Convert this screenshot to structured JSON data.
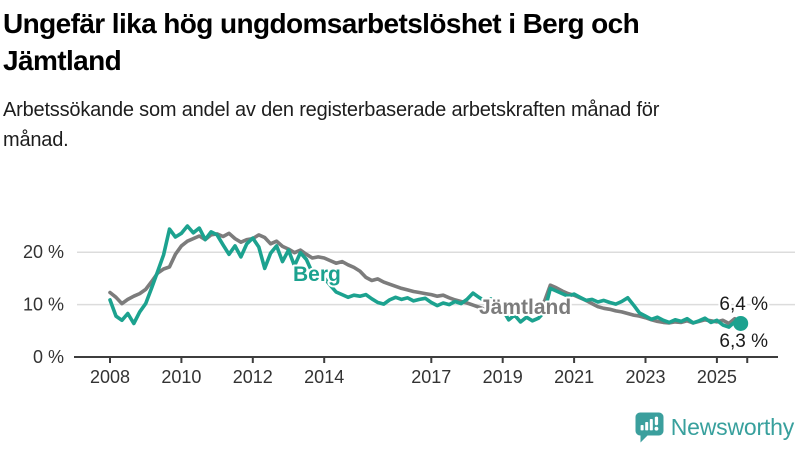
{
  "header": {
    "title": "Ungefär lika hög ungdomsarbetslöshet i Berg och Jämtland",
    "subtitle": "Arbetssökande som andel av den registerbaserade arbetskraften månad för månad."
  },
  "branding": {
    "name": "Newsworthy",
    "color": "#38a09d",
    "icon": "newsworthy-bubble-chart-icon"
  },
  "chart_data": {
    "type": "line",
    "unit": "%",
    "x_label": "",
    "y_label": "",
    "x_min": 2008.0,
    "x_max": 2025.85,
    "x_step_months": 2,
    "ylim": [
      0,
      27
    ],
    "grid": true,
    "y_ticks": [
      {
        "v": 0,
        "label": "0 %"
      },
      {
        "v": 10,
        "label": "10 %"
      },
      {
        "v": 20,
        "label": "20 %"
      }
    ],
    "x_ticks": [
      {
        "t": 2008,
        "label": "2008"
      },
      {
        "t": 2010,
        "label": "2010"
      },
      {
        "t": 2012,
        "label": "2012"
      },
      {
        "t": 2014,
        "label": "2014"
      },
      {
        "t": 2017,
        "label": "2017"
      },
      {
        "t": 2019,
        "label": "2019"
      },
      {
        "t": 2021,
        "label": "2021"
      },
      {
        "t": 2023,
        "label": "2023"
      },
      {
        "t": 2025,
        "label": "2025"
      },
      {
        "t": 2025.85,
        "label": ""
      }
    ],
    "series": [
      {
        "name": "Jämtland",
        "color": "#7c7c7c",
        "end_label": "6,3 %",
        "end_value": 6.3,
        "values": [
          12.3,
          11.4,
          10.2,
          11.0,
          11.6,
          12.1,
          12.9,
          14.4,
          16.0,
          16.8,
          17.2,
          19.6,
          21.2,
          22.1,
          22.6,
          23.1,
          22.4,
          23.3,
          23.5,
          23.0,
          23.6,
          22.6,
          21.9,
          22.4,
          22.6,
          23.3,
          22.8,
          21.6,
          22.1,
          21.1,
          20.6,
          19.9,
          20.4,
          19.6,
          18.9,
          19.1,
          18.9,
          18.4,
          17.9,
          18.2,
          17.6,
          17.1,
          16.4,
          15.2,
          14.6,
          14.9,
          14.3,
          13.9,
          13.5,
          13.1,
          12.8,
          12.5,
          12.3,
          12.1,
          11.9,
          11.6,
          11.8,
          11.3,
          10.9,
          10.6,
          10.3,
          9.9,
          9.5,
          9.1,
          8.7,
          8.9,
          8.8,
          9.2,
          8.9,
          9.3,
          9.1,
          9.3,
          9.6,
          10.6,
          13.7,
          13.2,
          12.6,
          12.1,
          11.8,
          11.3,
          10.8,
          10.2,
          9.6,
          9.3,
          9.1,
          8.8,
          8.6,
          8.3,
          8.0,
          7.8,
          7.5,
          7.1,
          6.8,
          6.6,
          6.5,
          6.7,
          6.6,
          6.9,
          6.5,
          6.8,
          7.1,
          6.9,
          6.7,
          7.0,
          6.4,
          7.3,
          6.3
        ]
      },
      {
        "name": "Berg",
        "color": "#1ca28f",
        "end_label": "6,4 %",
        "end_value": 6.4,
        "end_dot": true,
        "values": [
          10.9,
          7.8,
          7.0,
          8.3,
          6.4,
          8.6,
          10.2,
          13.2,
          16.3,
          19.5,
          24.4,
          22.9,
          23.6,
          25.0,
          23.7,
          24.6,
          22.4,
          23.9,
          23.3,
          21.4,
          19.6,
          21.2,
          19.1,
          21.6,
          22.7,
          21.0,
          16.9,
          19.8,
          21.2,
          18.2,
          20.4,
          17.4,
          19.9,
          18.6,
          16.1,
          14.9,
          15.1,
          13.7,
          12.4,
          11.9,
          11.4,
          11.8,
          11.6,
          11.9,
          11.1,
          10.4,
          10.1,
          10.9,
          11.4,
          11.0,
          11.3,
          10.7,
          11.0,
          11.2,
          10.4,
          9.8,
          10.3,
          10.0,
          10.6,
          10.2,
          11.0,
          12.2,
          11.4,
          10.7,
          11.1,
          10.4,
          9.0,
          7.1,
          8.0,
          6.7,
          7.6,
          6.9,
          7.4,
          8.6,
          13.1,
          12.6,
          12.1,
          11.6,
          12.0,
          11.4,
          10.8,
          11.0,
          10.5,
          10.8,
          10.4,
          10.1,
          10.6,
          11.3,
          9.9,
          8.4,
          7.8,
          7.2,
          7.6,
          7.0,
          6.6,
          7.1,
          6.8,
          7.3,
          6.5,
          6.9,
          7.4,
          6.6,
          7.0,
          6.1,
          5.7,
          6.7,
          6.4
        ]
      }
    ],
    "colors": {
      "grid": "#dcdcdc",
      "axis": "#3d3d3d",
      "tick_text": "#333333",
      "end_label_text": "#1a1a1a"
    }
  }
}
